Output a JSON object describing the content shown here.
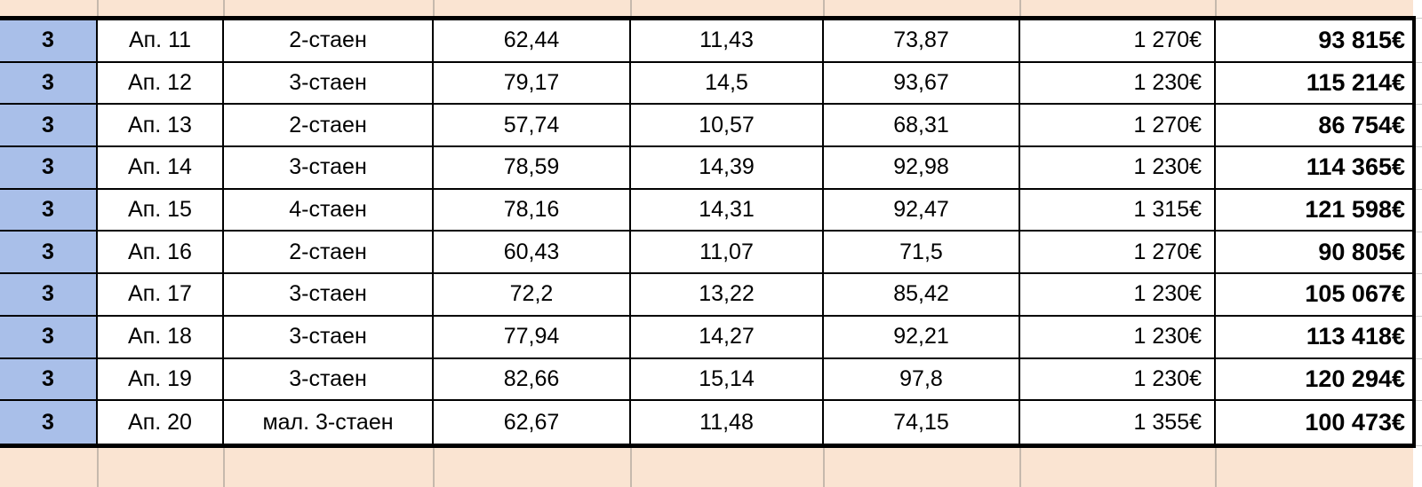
{
  "table": {
    "columns": [
      {
        "key": "floor",
        "name": "cell-floor"
      },
      {
        "key": "apartment",
        "name": "cell-apartment-number"
      },
      {
        "key": "type",
        "name": "cell-apartment-type"
      },
      {
        "key": "area",
        "name": "cell-net-area"
      },
      {
        "key": "common_parts",
        "name": "cell-common-parts-area"
      },
      {
        "key": "total_area",
        "name": "cell-total-area"
      },
      {
        "key": "price_per_sqm",
        "name": "cell-price-per-sqm"
      },
      {
        "key": "total_price",
        "name": "cell-total-price"
      }
    ],
    "rows": [
      {
        "floor": "3",
        "apartment": "Ап. 11",
        "type": "2-стаен",
        "area": "62,44",
        "common_parts": "11,43",
        "total_area": "73,87",
        "price_per_sqm": "1 270€",
        "total_price": "93 815€"
      },
      {
        "floor": "3",
        "apartment": "Ап. 12",
        "type": "3-стаен",
        "area": "79,17",
        "common_parts": "14,5",
        "total_area": "93,67",
        "price_per_sqm": "1 230€",
        "total_price": "115 214€"
      },
      {
        "floor": "3",
        "apartment": "Ап. 13",
        "type": "2-стаен",
        "area": "57,74",
        "common_parts": "10,57",
        "total_area": "68,31",
        "price_per_sqm": "1 270€",
        "total_price": "86 754€"
      },
      {
        "floor": "3",
        "apartment": "Ап. 14",
        "type": "3-стаен",
        "area": "78,59",
        "common_parts": "14,39",
        "total_area": "92,98",
        "price_per_sqm": "1 230€",
        "total_price": "114 365€"
      },
      {
        "floor": "3",
        "apartment": "Ап. 15",
        "type": "4-стаен",
        "area": "78,16",
        "common_parts": "14,31",
        "total_area": "92,47",
        "price_per_sqm": "1 315€",
        "total_price": "121 598€"
      },
      {
        "floor": "3",
        "apartment": "Ап. 16",
        "type": "2-стаен",
        "area": "60,43",
        "common_parts": "11,07",
        "total_area": "71,5",
        "price_per_sqm": "1 270€",
        "total_price": "90 805€"
      },
      {
        "floor": "3",
        "apartment": "Ап. 17",
        "type": "3-стаен",
        "area": "72,2",
        "common_parts": "13,22",
        "total_area": "85,42",
        "price_per_sqm": "1 230€",
        "total_price": "105 067€"
      },
      {
        "floor": "3",
        "apartment": "Ап. 18",
        "type": "3-стаен",
        "area": "77,94",
        "common_parts": "14,27",
        "total_area": "92,21",
        "price_per_sqm": "1 230€",
        "total_price": "113 418€"
      },
      {
        "floor": "3",
        "apartment": "Ап. 19",
        "type": "3-стаен",
        "area": "82,66",
        "common_parts": "15,14",
        "total_area": "97,8",
        "price_per_sqm": "1 230€",
        "total_price": "120 294€"
      },
      {
        "floor": "3",
        "apartment": "Ап. 20",
        "type": "мал. 3-стаен",
        "area": "62,67",
        "common_parts": "11,48",
        "total_area": "74,15",
        "price_per_sqm": "1 355€",
        "total_price": "100 473€"
      }
    ]
  },
  "colors": {
    "floor_column_fill": "#A9BFE9",
    "sheet_outside_fill": "#FAE4D2",
    "table_border": "#000000",
    "sheet_gridline": "#C9C9C9"
  }
}
